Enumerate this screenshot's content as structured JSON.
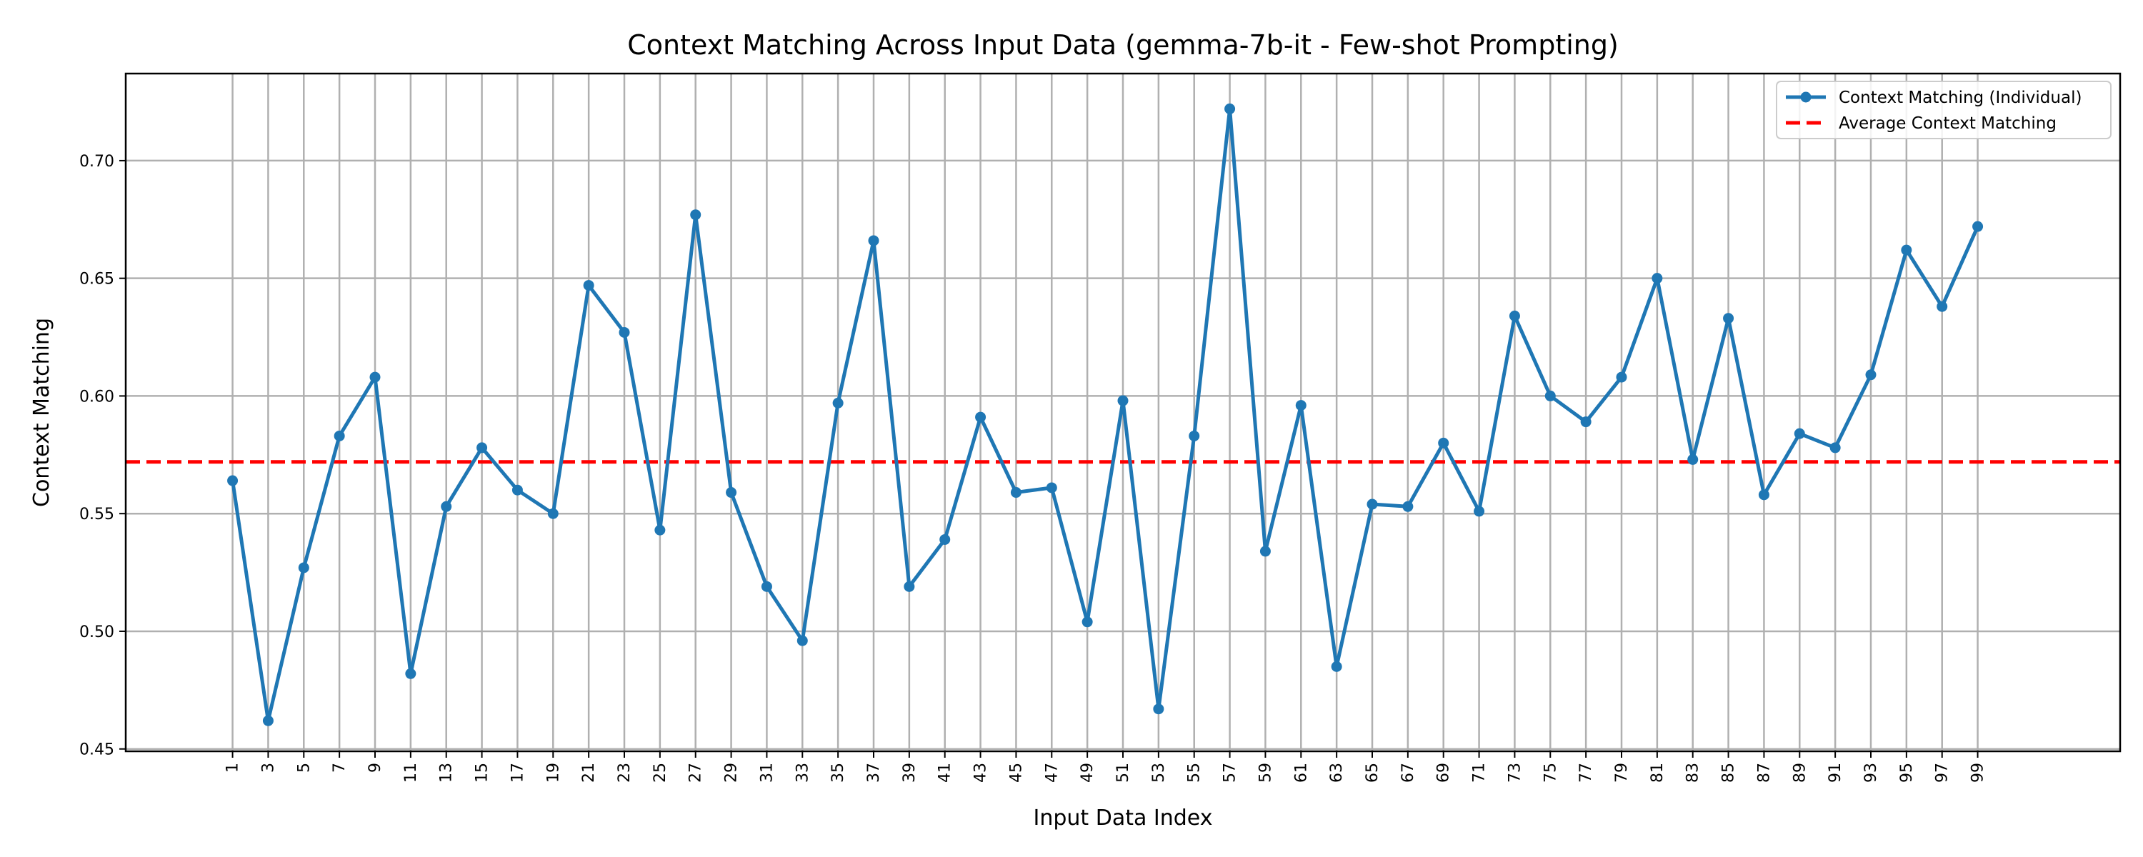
{
  "chart_data": {
    "type": "line",
    "title": "Context Matching Across Input Data (gemma-7b-it - Few-shot Prompting)",
    "xlabel": "Input Data Index",
    "ylabel": "Context Matching",
    "xlim": [
      -5,
      107
    ],
    "ylim": [
      0.449,
      0.737
    ],
    "x_ticks": [
      1,
      3,
      5,
      7,
      9,
      11,
      13,
      15,
      17,
      19,
      21,
      23,
      25,
      27,
      29,
      31,
      33,
      35,
      37,
      39,
      41,
      43,
      45,
      47,
      49,
      51,
      53,
      55,
      57,
      59,
      61,
      63,
      65,
      67,
      69,
      71,
      73,
      75,
      77,
      79,
      81,
      83,
      85,
      87,
      89,
      91,
      93,
      95,
      97,
      99
    ],
    "y_ticks": [
      0.45,
      0.5,
      0.55,
      0.6,
      0.65,
      0.7
    ],
    "y_tick_labels": [
      "0.45",
      "0.50",
      "0.55",
      "0.60",
      "0.65",
      "0.70"
    ],
    "grid": true,
    "legend_position": "top-right",
    "series": [
      {
        "name": "Context Matching (Individual)",
        "color": "#1f77b4",
        "marker": "circle",
        "x": [
          1,
          3,
          5,
          7,
          9,
          11,
          13,
          15,
          17,
          19,
          21,
          23,
          25,
          27,
          29,
          31,
          33,
          35,
          37,
          39,
          41,
          43,
          45,
          47,
          49,
          51,
          53,
          55,
          57,
          59,
          61,
          63,
          65,
          67,
          69,
          71,
          73,
          75,
          77,
          79,
          81,
          83,
          85,
          87,
          89,
          91,
          93,
          95,
          97,
          99
        ],
        "values": [
          0.564,
          0.462,
          0.527,
          0.583,
          0.608,
          0.482,
          0.553,
          0.578,
          0.56,
          0.55,
          0.647,
          0.627,
          0.543,
          0.677,
          0.559,
          0.519,
          0.496,
          0.597,
          0.666,
          0.519,
          0.539,
          0.591,
          0.559,
          0.561,
          0.504,
          0.598,
          0.467,
          0.583,
          0.722,
          0.534,
          0.596,
          0.485,
          0.554,
          0.553,
          0.58,
          0.551,
          0.634,
          0.6,
          0.589,
          0.608,
          0.65,
          0.573,
          0.633,
          0.558,
          0.584,
          0.578,
          0.609,
          0.662,
          0.638,
          0.672
        ]
      },
      {
        "name": "Average Context Matching",
        "color": "#ff0000",
        "style": "dashed",
        "value": 0.572
      }
    ]
  }
}
